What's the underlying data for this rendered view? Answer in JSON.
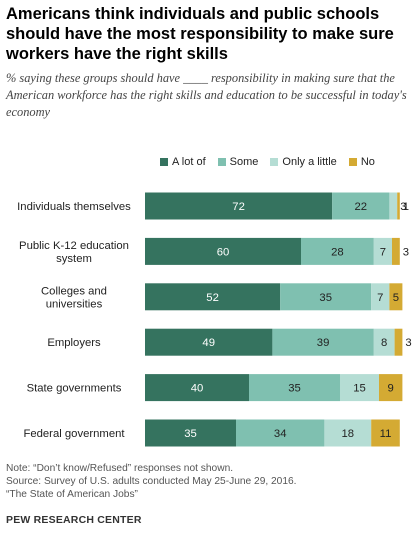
{
  "title": "Americans think individuals and public schools should have the most responsibility to make sure workers have the right skills",
  "subtitle": "% saying these groups should have ____ responsibility in making sure that the American workforce has the right skills and education to be successful in today's economy",
  "note": "Note: “Don’t know/Refused” responses not shown.",
  "source": "Source: Survey of U.S. adults conducted May 25-June 29, 2016.",
  "report": "“The State of American Jobs”",
  "organization": "PEW RESEARCH CENTER",
  "colors": {
    "a_lot": "#35735f",
    "some": "#7fc0b0",
    "only_a_little": "#b5ddd4",
    "no": "#d4aa33"
  },
  "chart_data": {
    "type": "bar",
    "orientation": "horizontal",
    "stacked": true,
    "categories": [
      [
        "Individuals themselves"
      ],
      [
        "Public K-12 education",
        "system"
      ],
      [
        "Colleges and",
        "universities"
      ],
      [
        "Employers"
      ],
      [
        "State governments"
      ],
      [
        "Federal government"
      ]
    ],
    "series": [
      {
        "name": "A lot of",
        "color": "#35735f",
        "values": [
          72,
          60,
          52,
          49,
          40,
          35
        ]
      },
      {
        "name": "Some",
        "color": "#7fc0b0",
        "values": [
          22,
          28,
          35,
          39,
          35,
          34
        ]
      },
      {
        "name": "Only a little",
        "color": "#b5ddd4",
        "values": [
          3,
          7,
          7,
          8,
          15,
          18
        ]
      },
      {
        "name": "No",
        "color": "#d4aa33",
        "values": [
          1,
          3,
          5,
          3,
          9,
          11
        ]
      }
    ],
    "xlim": [
      0,
      100
    ],
    "legend_position": "top",
    "grid": false
  }
}
